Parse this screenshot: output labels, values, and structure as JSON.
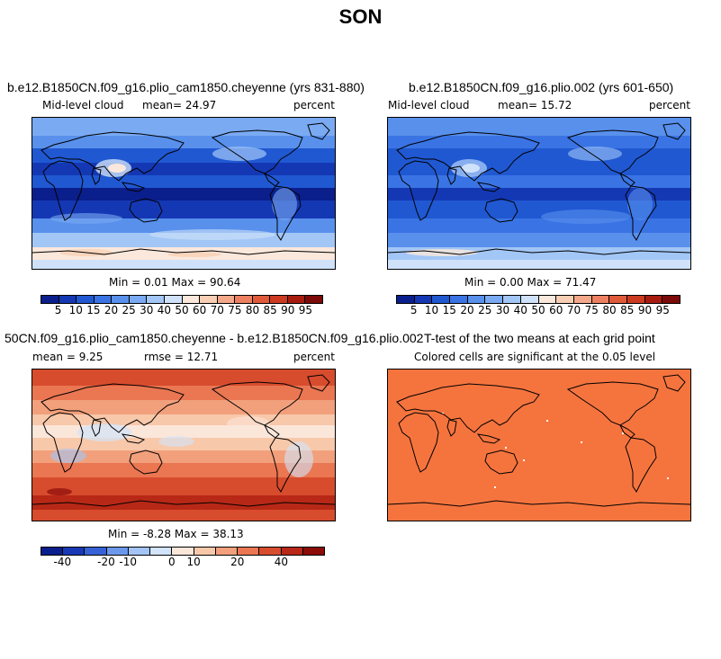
{
  "season_title": "SON",
  "colors": {
    "abs_palette": [
      "#0a1e8c",
      "#1438b4",
      "#2058d2",
      "#3a74e4",
      "#5890ec",
      "#7aaaf2",
      "#a2c6f6",
      "#cfe2fa",
      "#fbe8dc",
      "#f8cfb4",
      "#f4a88a",
      "#ec8060",
      "#e05a3a",
      "#cc3a20",
      "#a81c10",
      "#7c0a08"
    ],
    "diff_palette": [
      "#0a1e8c",
      "#1838b4",
      "#3662d6",
      "#6c98ec",
      "#a4c4f6",
      "#d2e4fa",
      "#fbe6da",
      "#f8c8aa",
      "#f2a07c",
      "#ea7652",
      "#d84c2e",
      "#b82816",
      "#8c0c08"
    ],
    "ttest_fill": "#f5743e",
    "coastline": "#000000"
  },
  "panels": {
    "p1": {
      "title": "b.e12.B1850CN.f09_g16.plio_cam1850.cheyenne (yrs 831-880)",
      "left_label": "Mid-level cloud",
      "center_label": "mean=  24.97",
      "right_label": "percent",
      "minmax": "Min =   0.01 Max =  90.64",
      "ticks": [
        "5",
        "10",
        "15",
        "20",
        "25",
        "30",
        "40",
        "50",
        "60",
        "70",
        "75",
        "80",
        "85",
        "90",
        "95"
      ]
    },
    "p2": {
      "title": "b.e12.B1850CN.f09_g16.plio.002 (yrs 601-650)",
      "left_label": "Mid-level cloud",
      "center_label": "mean=  15.72",
      "right_label": "percent",
      "minmax": "Min =   0.00 Max =  71.47",
      "ticks": [
        "5",
        "10",
        "15",
        "20",
        "25",
        "30",
        "40",
        "50",
        "60",
        "70",
        "75",
        "80",
        "85",
        "90",
        "95"
      ]
    },
    "p3": {
      "title": "50CN.f09_g16.plio_cam1850.cheyenne - b.e12.B1850CN.f09_g16.plio.002",
      "left_label": "mean =   9.25",
      "center_label": "rmse =  12.71",
      "right_label": "percent",
      "minmax": "Min =  -8.28 Max =  38.13",
      "ticks": [
        "-40",
        "-20",
        "-10",
        "0",
        "10",
        "20",
        "40"
      ]
    },
    "p4": {
      "title": "T-test of the two means at each grid point",
      "subtitle": "Colored cells are significant at the 0.05 level"
    }
  }
}
